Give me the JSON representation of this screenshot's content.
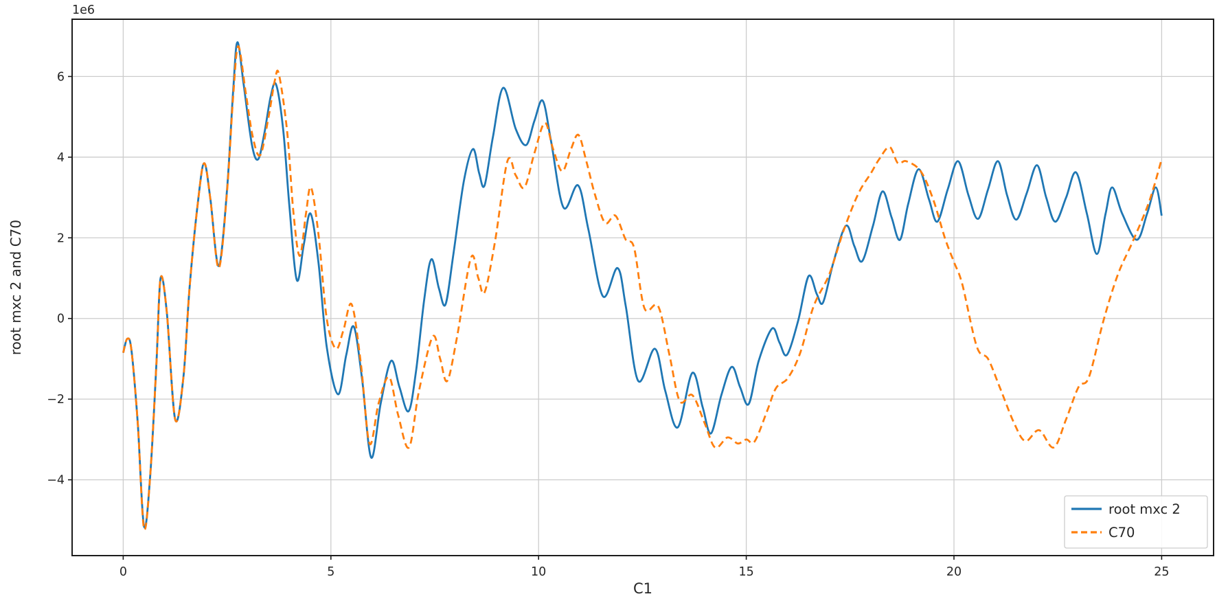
{
  "page": {
    "background": "#ffffff"
  },
  "chart_data": {
    "type": "line",
    "title": "",
    "xlabel": "C1",
    "ylabel": "root mxc 2 and C70",
    "y_offset_text": "1e6",
    "y_unit_scale": 1000000,
    "xlim": [
      -1.23,
      26.25
    ],
    "ylim": [
      -5.88,
      7.42
    ],
    "x_ticks": [
      0,
      5,
      10,
      15,
      20,
      25
    ],
    "x_tick_labels": [
      "0",
      "5",
      "10",
      "15",
      "20",
      "25"
    ],
    "y_ticks": [
      -4,
      -2,
      0,
      2,
      4,
      6
    ],
    "y_tick_labels": [
      "−4",
      "−2",
      "0",
      "2",
      "4",
      "6"
    ],
    "grid": true,
    "colors": {
      "axis": "#1c1c1c",
      "grid": "#cccccc",
      "text": "#262626",
      "blue": "#1f77b4",
      "orange": "#ff7f0e",
      "legend_border": "#cccccc",
      "legend_bg": "#ffffff"
    },
    "legend": {
      "position": "lower right",
      "entries": [
        "root mxc 2",
        "C70"
      ]
    },
    "series": [
      {
        "name": "root mxc 2",
        "color": "#1f77b4",
        "line_style": "solid",
        "points_unit": "x in C1 units, y in 1e6",
        "points": [
          [
            0,
            -0.85
          ],
          [
            0.1,
            -0.5
          ],
          [
            0.2,
            -0.8
          ],
          [
            0.35,
            -2.6
          ],
          [
            0.5,
            -5.15
          ],
          [
            0.65,
            -3.9
          ],
          [
            0.8,
            -1.1
          ],
          [
            0.9,
            1.0
          ],
          [
            1.05,
            0.15
          ],
          [
            1.25,
            -2.5
          ],
          [
            1.45,
            -1.45
          ],
          [
            1.6,
            0.8
          ],
          [
            1.8,
            2.9
          ],
          [
            1.95,
            3.85
          ],
          [
            2.1,
            2.95
          ],
          [
            2.3,
            1.3
          ],
          [
            2.5,
            3.2
          ],
          [
            2.65,
            5.7
          ],
          [
            2.75,
            6.85
          ],
          [
            2.9,
            5.8
          ],
          [
            3.1,
            4.3
          ],
          [
            3.25,
            3.95
          ],
          [
            3.4,
            4.6
          ],
          [
            3.55,
            5.5
          ],
          [
            3.68,
            5.8
          ],
          [
            3.85,
            4.7
          ],
          [
            4.0,
            2.8
          ],
          [
            4.18,
            0.95
          ],
          [
            4.35,
            1.85
          ],
          [
            4.51,
            2.6
          ],
          [
            4.7,
            1.4
          ],
          [
            4.9,
            -0.7
          ],
          [
            5.17,
            -1.88
          ],
          [
            5.37,
            -0.9
          ],
          [
            5.55,
            -0.2
          ],
          [
            5.75,
            -1.5
          ],
          [
            5.97,
            -3.45
          ],
          [
            6.2,
            -2.1
          ],
          [
            6.45,
            -1.05
          ],
          [
            6.65,
            -1.7
          ],
          [
            6.87,
            -2.3
          ],
          [
            7.05,
            -1.3
          ],
          [
            7.25,
            0.5
          ],
          [
            7.42,
            1.47
          ],
          [
            7.6,
            0.75
          ],
          [
            7.76,
            0.35
          ],
          [
            7.95,
            1.6
          ],
          [
            8.2,
            3.4
          ],
          [
            8.42,
            4.2
          ],
          [
            8.57,
            3.6
          ],
          [
            8.7,
            3.3
          ],
          [
            8.9,
            4.5
          ],
          [
            9.15,
            5.72
          ],
          [
            9.45,
            4.7
          ],
          [
            9.7,
            4.3
          ],
          [
            9.9,
            4.9
          ],
          [
            10.1,
            5.4
          ],
          [
            10.3,
            4.4
          ],
          [
            10.6,
            2.75
          ],
          [
            10.95,
            3.3
          ],
          [
            11.2,
            2.2
          ],
          [
            11.55,
            0.55
          ],
          [
            11.9,
            1.25
          ],
          [
            12.1,
            0.3
          ],
          [
            12.4,
            -1.55
          ],
          [
            12.8,
            -0.75
          ],
          [
            13.05,
            -1.8
          ],
          [
            13.35,
            -2.7
          ],
          [
            13.7,
            -1.35
          ],
          [
            13.95,
            -2.2
          ],
          [
            14.15,
            -2.85
          ],
          [
            14.4,
            -1.9
          ],
          [
            14.65,
            -1.2
          ],
          [
            14.85,
            -1.7
          ],
          [
            15.06,
            -2.12
          ],
          [
            15.3,
            -1.05
          ],
          [
            15.62,
            -0.25
          ],
          [
            15.8,
            -0.6
          ],
          [
            15.98,
            -0.9
          ],
          [
            16.25,
            -0.05
          ],
          [
            16.5,
            1.05
          ],
          [
            16.7,
            0.6
          ],
          [
            16.85,
            0.4
          ],
          [
            17.1,
            1.4
          ],
          [
            17.4,
            2.3
          ],
          [
            17.6,
            1.8
          ],
          [
            17.79,
            1.42
          ],
          [
            18.05,
            2.3
          ],
          [
            18.28,
            3.15
          ],
          [
            18.5,
            2.5
          ],
          [
            18.7,
            1.95
          ],
          [
            18.9,
            2.85
          ],
          [
            19.15,
            3.7
          ],
          [
            19.4,
            2.95
          ],
          [
            19.6,
            2.4
          ],
          [
            19.85,
            3.2
          ],
          [
            20.1,
            3.9
          ],
          [
            20.35,
            3.05
          ],
          [
            20.58,
            2.47
          ],
          [
            20.82,
            3.2
          ],
          [
            21.06,
            3.9
          ],
          [
            21.28,
            3.05
          ],
          [
            21.5,
            2.45
          ],
          [
            21.75,
            3.1
          ],
          [
            22.0,
            3.8
          ],
          [
            22.22,
            3.0
          ],
          [
            22.44,
            2.4
          ],
          [
            22.7,
            3.0
          ],
          [
            22.94,
            3.62
          ],
          [
            23.2,
            2.6
          ],
          [
            23.44,
            1.6
          ],
          [
            23.65,
            2.6
          ],
          [
            23.81,
            3.25
          ],
          [
            24.05,
            2.6
          ],
          [
            24.4,
            1.95
          ],
          [
            24.65,
            2.6
          ],
          [
            24.86,
            3.25
          ],
          [
            25.0,
            2.55
          ]
        ]
      },
      {
        "name": "C70",
        "color": "#ff7f0e",
        "line_style": "dashed",
        "points_unit": "x in C1 units, y in 1e6",
        "points": [
          [
            0,
            -0.85
          ],
          [
            0.1,
            -0.5
          ],
          [
            0.2,
            -0.8
          ],
          [
            0.35,
            -2.6
          ],
          [
            0.5,
            -5.2
          ],
          [
            0.65,
            -3.9
          ],
          [
            0.8,
            -1.1
          ],
          [
            0.9,
            1.0
          ],
          [
            1.05,
            0.15
          ],
          [
            1.25,
            -2.5
          ],
          [
            1.45,
            -1.45
          ],
          [
            1.6,
            0.8
          ],
          [
            1.8,
            2.9
          ],
          [
            1.95,
            3.85
          ],
          [
            2.1,
            2.95
          ],
          [
            2.3,
            1.25
          ],
          [
            2.5,
            3.15
          ],
          [
            2.65,
            5.55
          ],
          [
            2.77,
            6.75
          ],
          [
            2.95,
            5.6
          ],
          [
            3.12,
            4.5
          ],
          [
            3.3,
            4.05
          ],
          [
            3.5,
            5.0
          ],
          [
            3.65,
            5.9
          ],
          [
            3.75,
            6.05
          ],
          [
            3.95,
            4.6
          ],
          [
            4.1,
            2.6
          ],
          [
            4.25,
            1.55
          ],
          [
            4.4,
            2.6
          ],
          [
            4.52,
            3.25
          ],
          [
            4.7,
            2.1
          ],
          [
            4.9,
            0.0
          ],
          [
            5.12,
            -0.75
          ],
          [
            5.3,
            -0.3
          ],
          [
            5.5,
            0.35
          ],
          [
            5.72,
            -1.1
          ],
          [
            5.93,
            -3.1
          ],
          [
            6.15,
            -2.1
          ],
          [
            6.4,
            -1.45
          ],
          [
            6.62,
            -2.4
          ],
          [
            6.88,
            -3.2
          ],
          [
            7.12,
            -1.8
          ],
          [
            7.45,
            -0.45
          ],
          [
            7.63,
            -1.0
          ],
          [
            7.8,
            -1.55
          ],
          [
            8.03,
            -0.5
          ],
          [
            8.37,
            1.5
          ],
          [
            8.55,
            1.0
          ],
          [
            8.7,
            0.65
          ],
          [
            8.95,
            1.9
          ],
          [
            9.25,
            3.9
          ],
          [
            9.45,
            3.55
          ],
          [
            9.66,
            3.25
          ],
          [
            9.9,
            4.1
          ],
          [
            10.15,
            4.85
          ],
          [
            10.35,
            4.2
          ],
          [
            10.57,
            3.65
          ],
          [
            10.78,
            4.2
          ],
          [
            10.96,
            4.55
          ],
          [
            11.15,
            3.9
          ],
          [
            11.35,
            3.1
          ],
          [
            11.6,
            2.37
          ],
          [
            11.85,
            2.55
          ],
          [
            12.1,
            1.95
          ],
          [
            12.3,
            1.75
          ],
          [
            12.55,
            0.25
          ],
          [
            12.88,
            0.3
          ],
          [
            13.15,
            -0.9
          ],
          [
            13.4,
            -2.05
          ],
          [
            13.7,
            -1.9
          ],
          [
            14.0,
            -2.6
          ],
          [
            14.25,
            -3.2
          ],
          [
            14.55,
            -2.95
          ],
          [
            14.8,
            -3.1
          ],
          [
            15.0,
            -3.0
          ],
          [
            15.2,
            -3.05
          ],
          [
            15.5,
            -2.3
          ],
          [
            15.72,
            -1.72
          ],
          [
            16.0,
            -1.48
          ],
          [
            16.3,
            -0.85
          ],
          [
            16.62,
            0.3
          ],
          [
            17.0,
            1.1
          ],
          [
            17.35,
            2.2
          ],
          [
            17.7,
            3.1
          ],
          [
            18.0,
            3.6
          ],
          [
            18.2,
            3.95
          ],
          [
            18.45,
            4.25
          ],
          [
            18.65,
            3.85
          ],
          [
            18.85,
            3.9
          ],
          [
            19.2,
            3.65
          ],
          [
            19.5,
            2.95
          ],
          [
            19.78,
            2.0
          ],
          [
            20.0,
            1.4
          ],
          [
            20.2,
            0.85
          ],
          [
            20.55,
            -0.7
          ],
          [
            20.82,
            -1.0
          ],
          [
            21.1,
            -1.7
          ],
          [
            21.45,
            -2.6
          ],
          [
            21.72,
            -3.04
          ],
          [
            22.05,
            -2.77
          ],
          [
            22.4,
            -3.2
          ],
          [
            22.7,
            -2.5
          ],
          [
            23.0,
            -1.7
          ],
          [
            23.25,
            -1.45
          ],
          [
            23.6,
            -0.05
          ],
          [
            23.95,
            1.1
          ],
          [
            24.3,
            1.9
          ],
          [
            24.7,
            2.9
          ],
          [
            25.0,
            3.95
          ]
        ]
      }
    ]
  }
}
